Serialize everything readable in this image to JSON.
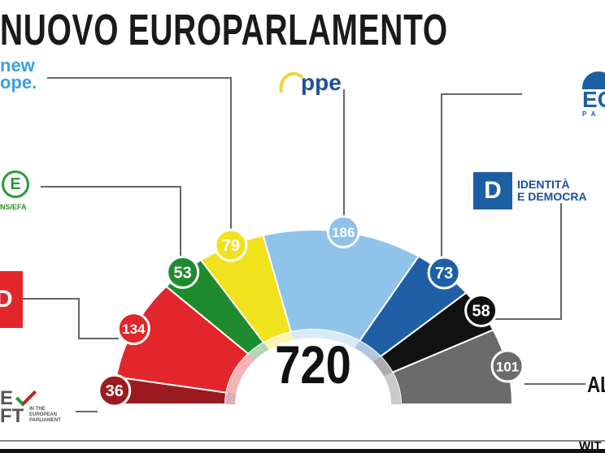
{
  "title": "NUOVO EUROPARLAMENTO",
  "chart_data": {
    "type": "hemicycle",
    "total": 720,
    "groups": [
      {
        "key": "left",
        "value": 36,
        "color": "#9b1b20"
      },
      {
        "key": "sd",
        "value": 134,
        "color": "#e2262b"
      },
      {
        "key": "greens",
        "value": 53,
        "color": "#1f8b2f"
      },
      {
        "key": "renew",
        "value": 79,
        "color": "#f1e21e"
      },
      {
        "key": "epp",
        "value": 186,
        "color": "#8fc3ea"
      },
      {
        "key": "ecr",
        "value": 73,
        "color": "#1f5fa5"
      },
      {
        "key": "id",
        "value": 58,
        "color": "#111111"
      },
      {
        "key": "others",
        "value": 101,
        "color": "#6b6b6b"
      }
    ]
  },
  "logos": {
    "renew": [
      "new",
      "ope."
    ],
    "epp": "ppe",
    "ecr": [
      "EC",
      "PA"
    ],
    "id": [
      "IDENTITÀ",
      "E DEMOCRA"
    ],
    "greens": "NS/EFA",
    "sd": "D",
    "left": [
      "E",
      "FT",
      "IN THE",
      "EUROPEAN",
      "PARLIAMENT"
    ],
    "others": "AL"
  },
  "footer": "WIT"
}
